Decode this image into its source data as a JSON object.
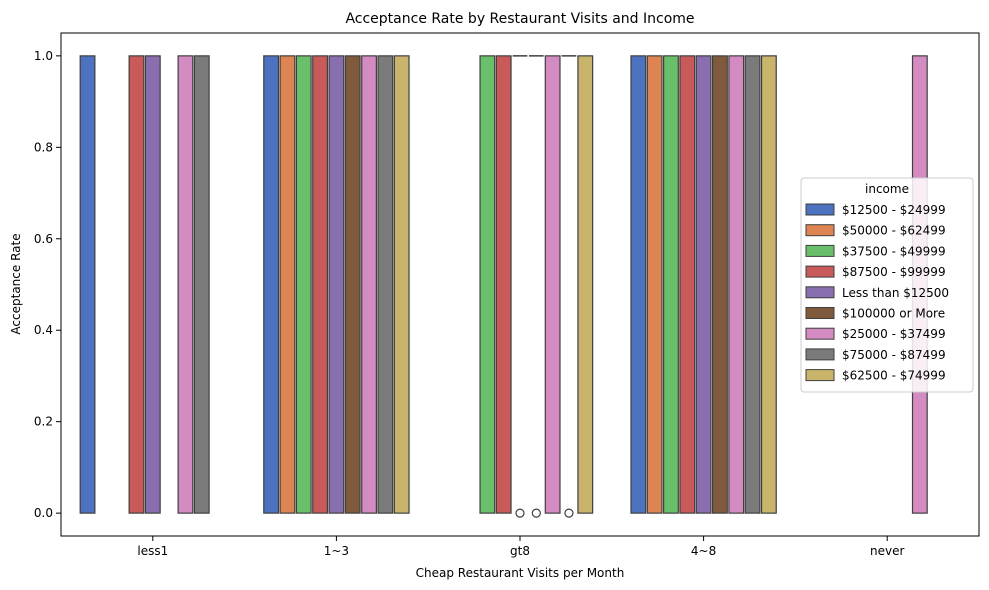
{
  "chart_data": {
    "type": "box",
    "title": "Acceptance Rate by Restaurant Visits and Income",
    "xlabel": "Cheap Restaurant Visits per Month",
    "ylabel": "Acceptance Rate",
    "ylim": [
      -0.05,
      1.05
    ],
    "yticks": [
      0.0,
      0.2,
      0.4,
      0.6,
      0.8,
      1.0
    ],
    "ytick_labels": [
      "0.0",
      "0.2",
      "0.4",
      "0.6",
      "0.8",
      "1.0"
    ],
    "categories": [
      "less1",
      "1~3",
      "gt8",
      "4~8",
      "never"
    ],
    "grid": false,
    "legend": {
      "title": "income",
      "placement": "center-right"
    },
    "series": [
      {
        "name": "$12500 - $24999",
        "color": "#4c72c0",
        "boxes": [
          [
            0,
            1
          ],
          [
            0,
            1
          ],
          null,
          [
            0,
            1
          ],
          null
        ],
        "flat": [
          null,
          null,
          null,
          null,
          null
        ],
        "outliers": [
          [],
          [],
          [],
          [],
          []
        ]
      },
      {
        "name": "$50000 - $62499",
        "color": "#dd8452",
        "boxes": [
          null,
          [
            0,
            1
          ],
          null,
          [
            0,
            1
          ],
          null
        ],
        "flat": [
          null,
          null,
          null,
          null,
          null
        ],
        "outliers": [
          [],
          [],
          [],
          [],
          []
        ]
      },
      {
        "name": "$37500 - $49999",
        "color": "#6abf6a",
        "boxes": [
          null,
          [
            0,
            1
          ],
          [
            0,
            1
          ],
          [
            0,
            1
          ],
          null
        ],
        "flat": [
          null,
          null,
          null,
          null,
          null
        ],
        "outliers": [
          [],
          [],
          [],
          [],
          []
        ]
      },
      {
        "name": "$87500 - $99999",
        "color": "#c85a5a",
        "boxes": [
          [
            0,
            1
          ],
          [
            0,
            1
          ],
          [
            0,
            1
          ],
          [
            0,
            1
          ],
          null
        ],
        "flat": [
          null,
          null,
          null,
          null,
          null
        ],
        "outliers": [
          [],
          [],
          [],
          [],
          []
        ]
      },
      {
        "name": "Less than $12500",
        "color": "#8a6fb0",
        "boxes": [
          [
            0,
            1
          ],
          [
            0,
            1
          ],
          null,
          [
            0,
            1
          ],
          null
        ],
        "flat": [
          null,
          null,
          1,
          null,
          null
        ],
        "outliers": [
          [],
          [],
          [
            0
          ],
          [],
          []
        ]
      },
      {
        "name": "$100000 or More",
        "color": "#7f5a3c",
        "boxes": [
          null,
          [
            0,
            1
          ],
          null,
          [
            0,
            1
          ],
          null
        ],
        "flat": [
          null,
          null,
          1,
          null,
          null
        ],
        "outliers": [
          [],
          [],
          [
            0
          ],
          [],
          []
        ]
      },
      {
        "name": "$25000 - $37499",
        "color": "#d38bc1",
        "boxes": [
          [
            0,
            1
          ],
          [
            0,
            1
          ],
          [
            0,
            1
          ],
          [
            0,
            1
          ],
          [
            0,
            1
          ]
        ],
        "flat": [
          null,
          null,
          null,
          null,
          null
        ],
        "outliers": [
          [],
          [],
          [],
          [],
          []
        ]
      },
      {
        "name": "$75000 - $87499",
        "color": "#7b7b7b",
        "boxes": [
          [
            0,
            1
          ],
          [
            0,
            1
          ],
          null,
          [
            0,
            1
          ],
          null
        ],
        "flat": [
          null,
          null,
          1,
          null,
          null
        ],
        "outliers": [
          [],
          [],
          [
            0
          ],
          [],
          []
        ]
      },
      {
        "name": "$62500 - $74999",
        "color": "#c8b46a",
        "boxes": [
          null,
          [
            0,
            1
          ],
          [
            0,
            1
          ],
          [
            0,
            1
          ],
          null
        ],
        "flat": [
          null,
          null,
          null,
          null,
          null
        ],
        "outliers": [
          [],
          [],
          [],
          [],
          []
        ]
      }
    ]
  }
}
